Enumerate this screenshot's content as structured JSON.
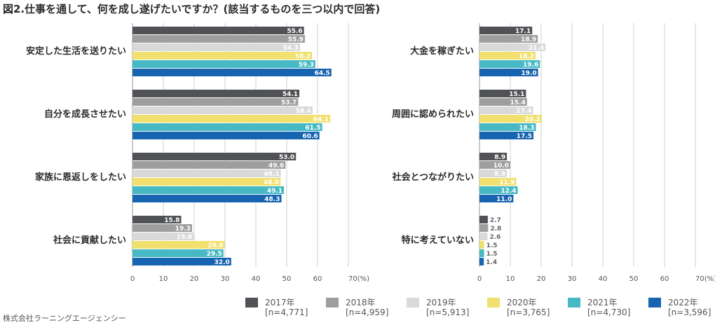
{
  "title": "図2.仕事を通して、何を成し遂げたいですか？(該当するものを三つ以内で回答)",
  "source": "株式会社ラーニングエージェンシー",
  "colors": {
    "grid": "#cfcfcf",
    "axis_text": "#555555",
    "category_text": "#2b2b2b",
    "label_dark": "#ffffff",
    "label_outside": "#666666"
  },
  "legend": [
    {
      "year": "2017年",
      "n": "[n=4,771]",
      "color": "#505255"
    },
    {
      "year": "2018年",
      "n": "[n=4,959]",
      "color": "#9e9e9e"
    },
    {
      "year": "2019年",
      "n": "[n=5,913]",
      "color": "#d9d9d9"
    },
    {
      "year": "2020年",
      "n": "[n=3,765]",
      "color": "#f1e06d"
    },
    {
      "year": "2021年",
      "n": "[n=4,730]",
      "color": "#46b9c4"
    },
    {
      "year": "2022年",
      "n": "[n=3,596]",
      "color": "#1764b0"
    }
  ],
  "chart_data": [
    {
      "type": "bar",
      "orientation": "horizontal",
      "x_ticks": [
        "0",
        "10",
        "20",
        "30",
        "40",
        "50",
        "60",
        "70(%)"
      ],
      "xlim": [
        0,
        70
      ],
      "grid": true,
      "categories": [
        "安定した生活を送りたい",
        "自分を成長させたい",
        "家族に恩返しをしたい",
        "社会に貢献したい"
      ],
      "series": [
        {
          "name": "2017年",
          "values": [
            55.6,
            54.1,
            53.0,
            15.8
          ]
        },
        {
          "name": "2018年",
          "values": [
            55.9,
            53.7,
            49.6,
            19.3
          ]
        },
        {
          "name": "2019年",
          "values": [
            54.3,
            58.4,
            48.1,
            19.8
          ]
        },
        {
          "name": "2020年",
          "values": [
            58.2,
            64.1,
            48.0,
            29.9
          ]
        },
        {
          "name": "2021年",
          "values": [
            59.3,
            61.5,
            49.1,
            29.5
          ]
        },
        {
          "name": "2022年",
          "values": [
            64.5,
            60.6,
            48.3,
            32.0
          ]
        }
      ]
    },
    {
      "type": "bar",
      "orientation": "horizontal",
      "x_ticks": [
        "0",
        "10",
        "20",
        "30",
        "40",
        "50",
        "60",
        "70(%)"
      ],
      "xlim": [
        0,
        70
      ],
      "grid": true,
      "categories": [
        "大金を稼ぎたい",
        "周囲に認められたい",
        "社会とつながりたい",
        "特に考えていない"
      ],
      "series": [
        {
          "name": "2017年",
          "values": [
            17.1,
            15.1,
            8.9,
            2.7
          ]
        },
        {
          "name": "2018年",
          "values": [
            18.9,
            15.4,
            10.0,
            2.8
          ]
        },
        {
          "name": "2019年",
          "values": [
            21.4,
            17.4,
            8.9,
            2.6
          ]
        },
        {
          "name": "2020年",
          "values": [
            18.2,
            20.2,
            11.9,
            1.5
          ]
        },
        {
          "name": "2021年",
          "values": [
            19.6,
            18.3,
            12.4,
            1.5
          ]
        },
        {
          "name": "2022年",
          "values": [
            19.0,
            17.5,
            11.0,
            1.4
          ]
        }
      ]
    }
  ]
}
